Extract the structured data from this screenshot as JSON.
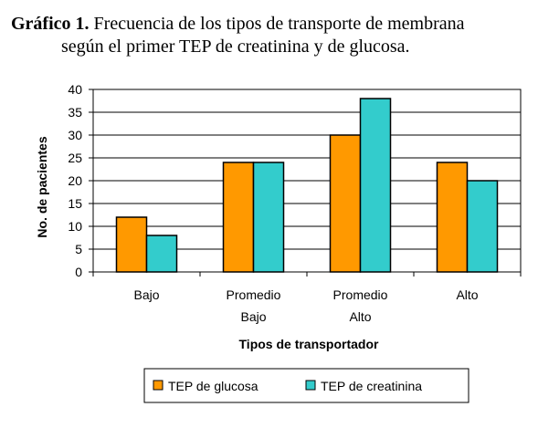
{
  "figure": {
    "title_lead": "Gráfico 1.",
    "title_line1": "Frecuencia de los tipos de transporte de membrana",
    "title_line2": "según el primer TEP de creatinina y de glucosa."
  },
  "chart_data": {
    "type": "bar",
    "categories": [
      [
        "Bajo"
      ],
      [
        "Promedio",
        "Bajo"
      ],
      [
        "Promedio",
        "Alto"
      ],
      [
        "Alto"
      ]
    ],
    "series": [
      {
        "name": "TEP de glucosa",
        "color": "#FF9900",
        "values": [
          12,
          24,
          30,
          24
        ]
      },
      {
        "name": "TEP de creatinina",
        "color": "#33CCCC",
        "values": [
          8,
          24,
          38,
          20
        ]
      }
    ],
    "xlabel": "Tipos de transportador",
    "ylabel": "No. de pacientes",
    "ylim": [
      0,
      40
    ],
    "yticks": [
      0,
      5,
      10,
      15,
      20,
      25,
      30,
      35,
      40
    ],
    "grid": true,
    "legend_position": "bottom"
  }
}
